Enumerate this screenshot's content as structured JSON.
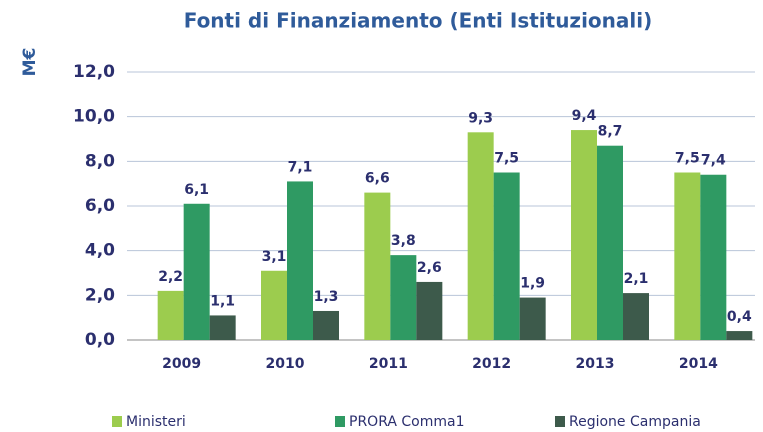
{
  "chart_data": {
    "type": "bar",
    "title": "Fonti di Finanziamento (Enti Istituzionali)",
    "y_label": "M€",
    "categories": [
      "2009",
      "2010",
      "2011",
      "2012",
      "2013",
      "2014"
    ],
    "series": [
      {
        "name": "Ministeri",
        "color": "#9ccc4e",
        "values": [
          2.2,
          3.1,
          6.6,
          9.3,
          9.4,
          7.5
        ],
        "value_labels": [
          "2,2",
          "3,1",
          "6,6",
          "9,3",
          "9,4",
          "7,5"
        ]
      },
      {
        "name": "PRORA Comma1",
        "color": "#2f9a63",
        "values": [
          6.1,
          7.1,
          3.8,
          7.5,
          8.7,
          7.4
        ],
        "value_labels": [
          "6,1",
          "7,1",
          "3,8",
          "7,5",
          "8,7",
          "7,4"
        ]
      },
      {
        "name": "Regione Campania",
        "color": "#3d5a4b",
        "values": [
          1.1,
          1.3,
          2.6,
          1.9,
          2.1,
          0.4
        ],
        "value_labels": [
          "1,1",
          "1,3",
          "2,6",
          "1,9",
          "2,1",
          "0,4"
        ]
      }
    ],
    "ylim": [
      0,
      12
    ],
    "yticks": [
      {
        "value": 0,
        "label": "0,0"
      },
      {
        "value": 2,
        "label": "2,0"
      },
      {
        "value": 4,
        "label": "4,0"
      },
      {
        "value": 6,
        "label": "6,0"
      },
      {
        "value": 8,
        "label": "8,0"
      },
      {
        "value": 10,
        "label": "10,0"
      },
      {
        "value": 12,
        "label": "12,0"
      }
    ],
    "grid": true
  }
}
